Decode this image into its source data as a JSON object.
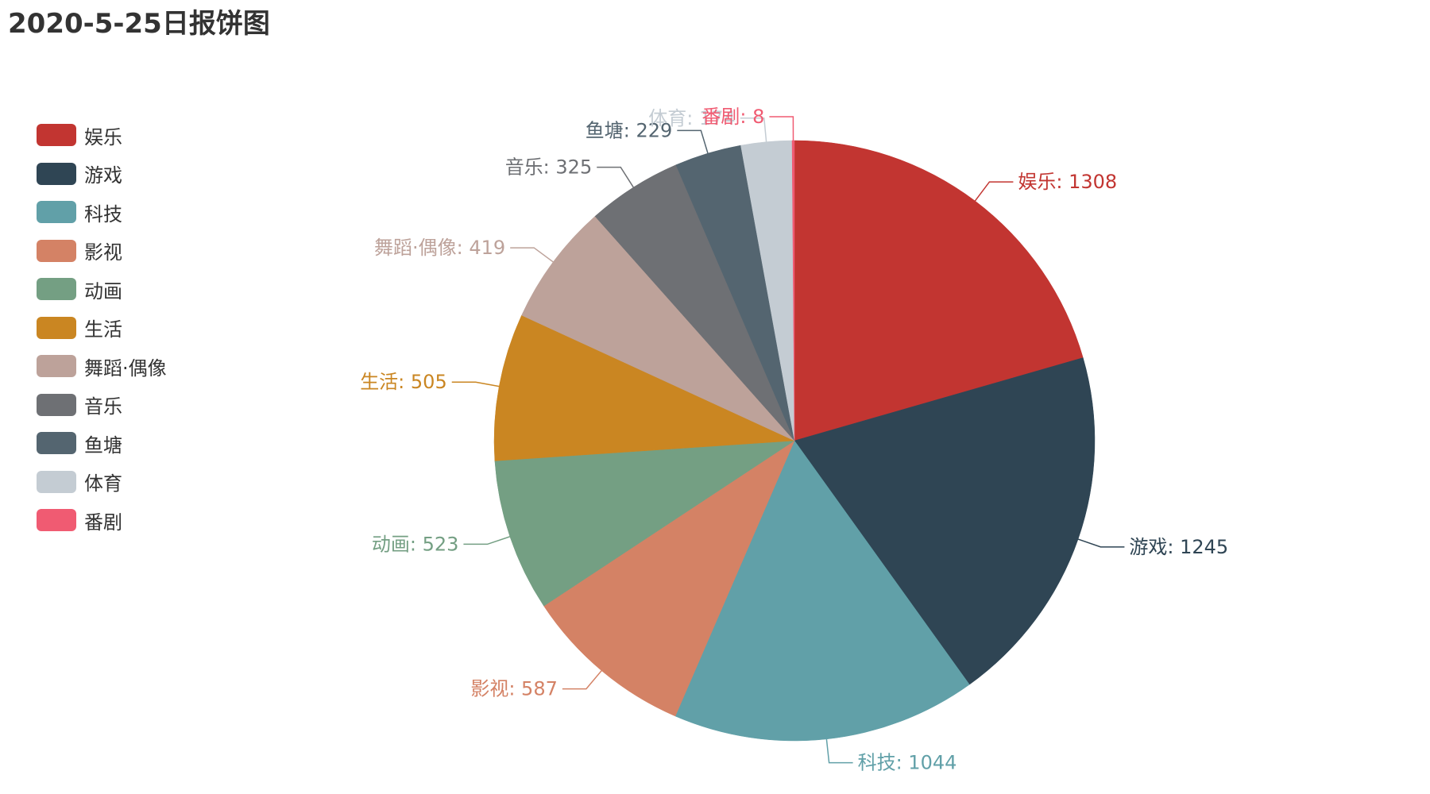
{
  "chart_data": {
    "type": "pie",
    "title": "2020-5-25日报饼图",
    "legend_position": "left",
    "slices": [
      {
        "name": "娱乐",
        "value": 1308,
        "color": "#c23531"
      },
      {
        "name": "游戏",
        "value": 1245,
        "color": "#2f4554"
      },
      {
        "name": "科技",
        "value": 1044,
        "color": "#61a0a8"
      },
      {
        "name": "影视",
        "value": 587,
        "color": "#d48265"
      },
      {
        "name": "动画",
        "value": 523,
        "color": "#749f83"
      },
      {
        "name": "生活",
        "value": 505,
        "color": "#ca8622"
      },
      {
        "name": "舞蹈·偶像",
        "value": 419,
        "color": "#bda29a"
      },
      {
        "name": "音乐",
        "value": 325,
        "color": "#6e7074"
      },
      {
        "name": "鱼塘",
        "value": 229,
        "color": "#546570"
      },
      {
        "name": "体育",
        "value": 174,
        "color": "#c4ccd3"
      },
      {
        "name": "番剧",
        "value": 8,
        "color": "#f05b72"
      }
    ]
  }
}
